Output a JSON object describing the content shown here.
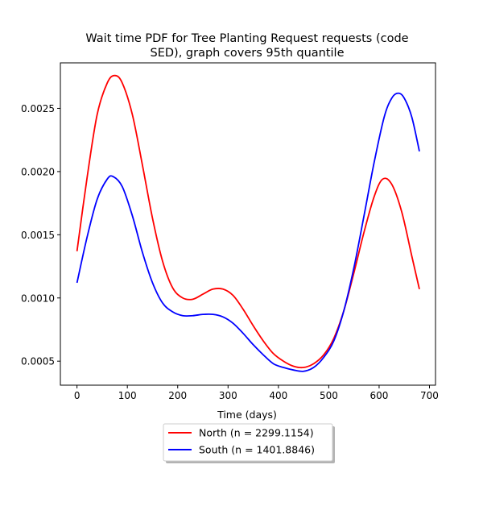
{
  "chart_data": {
    "type": "line",
    "title_line1": "Wait time PDF for Tree Planting Request  requests (code",
    "title_line2": "SED), graph covers 95th quantile",
    "xlabel": "Time (days)",
    "ylabel": "",
    "xlim": [
      -33,
      712
    ],
    "ylim": [
      0.00031,
      0.00286
    ],
    "xticks": [
      0,
      100,
      200,
      300,
      400,
      500,
      600,
      700
    ],
    "yticks": [
      0.0005,
      0.001,
      0.0015,
      0.002,
      0.0025
    ],
    "ytick_labels": [
      "0.0005",
      "0.0010",
      "0.0015",
      "0.0020",
      "0.0025"
    ],
    "grid": false,
    "legend_placement": "below",
    "series": [
      {
        "name": "North (n = 2299.1154)",
        "color": "#ff0000",
        "x": [
          0,
          20,
          40,
          60,
          75,
          90,
          110,
          130,
          150,
          170,
          190,
          210,
          230,
          250,
          270,
          290,
          310,
          330,
          350,
          370,
          390,
          410,
          430,
          450,
          470,
          490,
          510,
          530,
          550,
          570,
          590,
          607,
          625,
          645,
          665,
          680
        ],
        "y": [
          0.00137,
          0.00195,
          0.00245,
          0.0027,
          0.00276,
          0.0027,
          0.00245,
          0.00205,
          0.00163,
          0.00129,
          0.00108,
          0.001,
          0.00099,
          0.00103,
          0.00107,
          0.00107,
          0.00102,
          0.00091,
          0.00078,
          0.00066,
          0.00056,
          0.0005,
          0.00046,
          0.00045,
          0.00048,
          0.00055,
          0.00068,
          0.0009,
          0.0012,
          0.00152,
          0.0018,
          0.00194,
          0.0019,
          0.00168,
          0.00133,
          0.00107
        ]
      },
      {
        "name": "South (n = 1401.8846)",
        "color": "#0000ff",
        "x": [
          0,
          20,
          40,
          60,
          72,
          90,
          110,
          130,
          150,
          170,
          190,
          210,
          230,
          250,
          270,
          290,
          310,
          330,
          350,
          370,
          390,
          410,
          430,
          450,
          470,
          490,
          510,
          530,
          550,
          570,
          590,
          610,
          625,
          638,
          650,
          665,
          680
        ],
        "y": [
          0.00112,
          0.00148,
          0.00178,
          0.00194,
          0.00196,
          0.00188,
          0.00165,
          0.00136,
          0.00112,
          0.00096,
          0.00089,
          0.00086,
          0.00086,
          0.00087,
          0.00087,
          0.00085,
          0.0008,
          0.00072,
          0.00063,
          0.00055,
          0.00048,
          0.00045,
          0.00043,
          0.00042,
          0.00045,
          0.00053,
          0.00066,
          0.0009,
          0.00124,
          0.00165,
          0.00207,
          0.00243,
          0.00258,
          0.00262,
          0.00258,
          0.00243,
          0.00216
        ]
      }
    ]
  }
}
